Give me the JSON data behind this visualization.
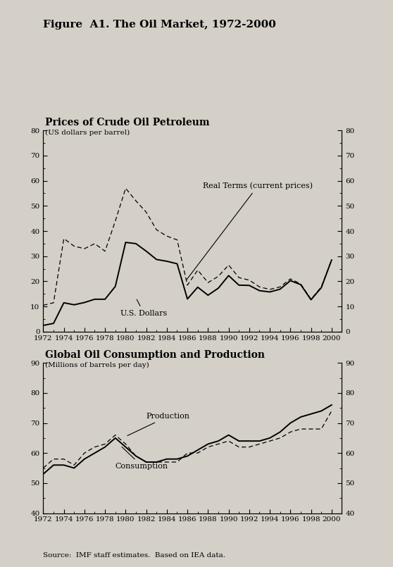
{
  "fig_title": "Figure  A1. The Oil Market, 1972-2000",
  "bg_color": "#d4d0c8",
  "chart1_title": "Prices of Crude Oil Petroleum",
  "chart1_subtitle": "(US dollars per barrel)",
  "chart1_ylim": [
    0,
    80
  ],
  "chart1_yticks": [
    0,
    10,
    20,
    30,
    40,
    50,
    60,
    70,
    80
  ],
  "chart1_label_usd": "U.S. Dollars",
  "chart1_label_real": "Real Terms (current prices)",
  "chart2_title": "Global Oil Consumption and Production",
  "chart2_subtitle": "(Millions of barrels per day)",
  "chart2_ylim": [
    40,
    90
  ],
  "chart2_yticks": [
    40,
    50,
    60,
    70,
    80,
    90
  ],
  "chart2_label_prod": "Production",
  "chart2_label_cons": "Consumption",
  "source_text": "Source:  IMF staff estimates.  Based on IEA data.",
  "years": [
    1972,
    1973,
    1974,
    1975,
    1976,
    1977,
    1978,
    1979,
    1980,
    1981,
    1982,
    1983,
    1984,
    1985,
    1986,
    1987,
    1988,
    1989,
    1990,
    1991,
    1992,
    1993,
    1994,
    1995,
    1996,
    1997,
    1998,
    1999,
    2000
  ],
  "usd_prices": [
    2.5,
    3.3,
    11.5,
    10.7,
    11.6,
    12.9,
    12.9,
    18.0,
    35.5,
    35.0,
    32.0,
    28.7,
    28.0,
    27.0,
    13.0,
    17.7,
    14.5,
    17.3,
    22.3,
    18.5,
    18.4,
    16.3,
    15.8,
    16.9,
    20.3,
    18.7,
    12.7,
    17.5,
    28.5
  ],
  "real_prices": [
    10.5,
    11.5,
    37.0,
    34.0,
    33.0,
    35.0,
    32.0,
    44.0,
    57.0,
    52.0,
    47.5,
    40.5,
    38.0,
    36.5,
    18.5,
    24.5,
    19.5,
    22.0,
    26.5,
    21.5,
    20.5,
    17.8,
    16.8,
    17.8,
    21.0,
    19.0,
    12.9,
    17.8,
    28.5
  ],
  "prod_data": [
    55,
    58,
    58,
    56,
    60,
    62,
    63,
    66,
    63,
    59,
    57,
    57,
    57,
    57,
    60,
    60,
    62,
    63,
    64,
    62,
    62,
    63,
    64,
    65,
    67,
    68,
    68,
    68,
    74
  ],
  "cons_data": [
    53,
    56,
    56,
    55,
    58,
    60,
    62,
    65,
    62,
    59,
    57,
    57,
    58,
    58,
    59,
    61,
    63,
    64,
    66,
    64,
    64,
    64,
    65,
    67,
    70,
    72,
    73,
    74,
    76
  ]
}
